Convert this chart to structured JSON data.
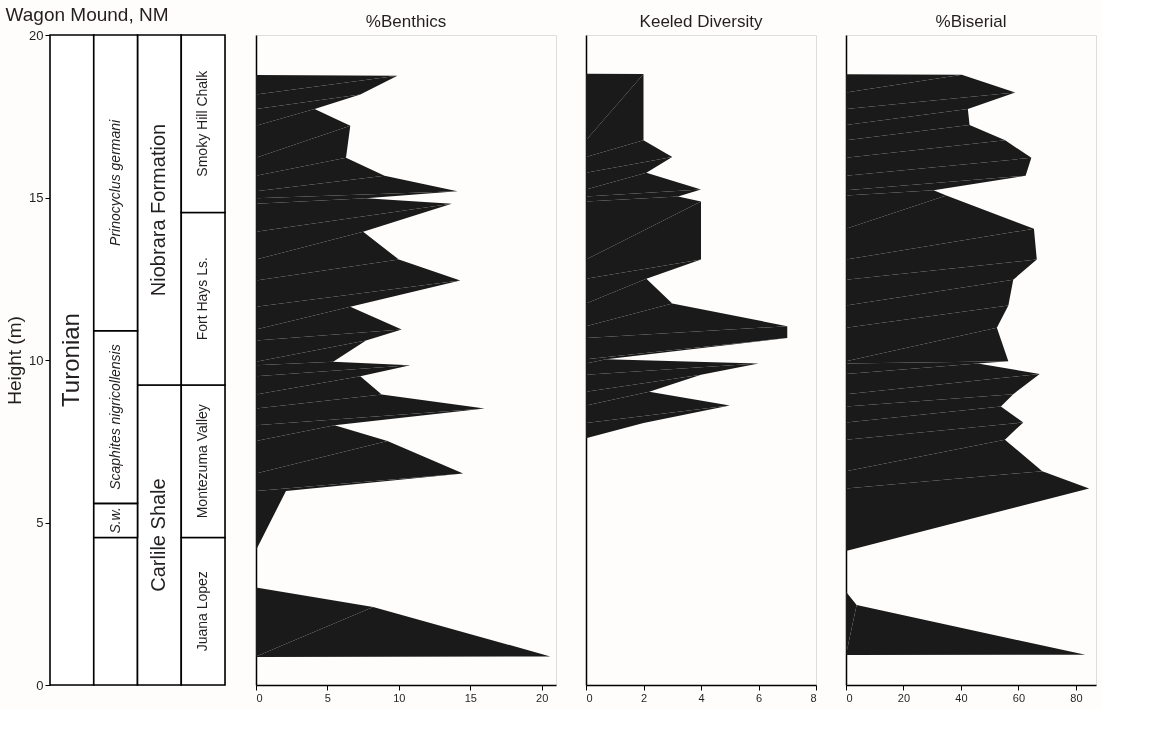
{
  "chart_data": [
    {
      "type": "bar",
      "stacked": true,
      "title": "Wagon Mound, NM",
      "ylabel": "Height (m)",
      "categories": [
        null,
        null,
        null,
        null
      ],
      "series": [
        {
          "color": "#ffffff",
          "values": [
            20,
            4.54,
            9.23,
            4.54
          ],
          "value_labels": [
            "Turonian",
            null,
            "Carlile Shale",
            "Juana Lopez"
          ]
        },
        {
          "color": "#ffffff",
          "values": [
            null,
            1.05,
            10.77,
            4.69
          ],
          "value_labels": [
            null,
            "S.w.",
            "Niobrara Formation",
            "Montezuma Valley"
          ]
        },
        {
          "color": "#ffffff",
          "values": [
            null,
            5.31,
            null,
            5.31
          ],
          "value_labels": [
            null,
            "Scaphites nigricollensis",
            null,
            "Fort Hays Ls."
          ]
        },
        {
          "color": "#ffffff",
          "values": [
            null,
            9.1,
            null,
            5.46
          ],
          "value_labels": [
            null,
            "Prinocyclus germani",
            null,
            "Smoky Hill Chalk"
          ]
        }
      ],
      "ylim": [
        0,
        20
      ],
      "yticks": [
        0,
        5,
        10,
        15,
        20
      ],
      "tick_labels": "y",
      "grid": false
    },
    {
      "type": "area",
      "orientation": "horizontal",
      "title": "%Benthics",
      "color": "#1a1a1a",
      "x": [
        18.77,
        18.75,
        18.17,
        17.72,
        17.21,
        16.22,
        15.67,
        15.19,
        14.98,
        14.81,
        13.95,
        13.09,
        12.45,
        11.64,
        10.94,
        10.6,
        9.95,
        9.84,
        9.5,
        8.94,
        8.51,
        7.99,
        7.51,
        6.51,
        5.97,
        4.15,
        3.0,
        2.4,
        0.88,
        0.86
      ],
      "values": [
        0,
        9.9,
        7.3,
        4.1,
        6.6,
        6.3,
        9.0,
        14.1,
        7.7,
        13.7,
        7.5,
        10.0,
        14.3,
        6.6,
        10.2,
        7.7,
        5.4,
        10.8,
        7.3,
        8.8,
        16.0,
        5.5,
        9.2,
        14.5,
        2.1,
        0,
        0,
        8.2,
        20.6,
        0
      ],
      "xlim": [
        0,
        21
      ],
      "xticks": [
        0,
        5,
        10,
        15,
        20
      ],
      "ylim": [
        0,
        20
      ],
      "tick_labels": "x",
      "grid": false
    },
    {
      "type": "area",
      "orientation": "horizontal",
      "title": "Keeled Diversity",
      "color": "#1a1a1a",
      "x": [
        18.81,
        18.8,
        16.76,
        16.25,
        15.76,
        15.25,
        15.03,
        14.88,
        13.09,
        12.5,
        11.74,
        11.04,
        10.68,
        10.02,
        9.89,
        9.55,
        9.02,
        8.6,
        8.06,
        7.59
      ],
      "values": [
        0,
        2.0,
        2.0,
        3.0,
        2.1,
        4.0,
        3.2,
        4.0,
        4.0,
        2.1,
        3.0,
        7.0,
        7.0,
        0.7,
        6.0,
        4.0,
        2.2,
        5.0,
        2.0,
        0
      ],
      "xlim": [
        0,
        8
      ],
      "xticks": [
        0,
        2,
        4,
        6,
        8
      ],
      "ylim": [
        0,
        20
      ],
      "tick_labels": "x",
      "grid": false
    },
    {
      "type": "area",
      "orientation": "horizontal",
      "title": "%Biserial",
      "color": "#1a1a1a",
      "x": [
        18.79,
        18.78,
        18.23,
        17.72,
        17.23,
        16.76,
        16.22,
        15.67,
        15.22,
        15.06,
        14.04,
        13.09,
        12.47,
        11.68,
        10.99,
        9.96,
        9.89,
        9.57,
        8.95,
        8.57,
        8.08,
        7.55,
        6.58,
        6.05,
        4.12,
        2.87,
        2.46,
        0.93,
        0.92
      ],
      "values": [
        0,
        40.3,
        58.9,
        42.4,
        43.0,
        55.4,
        64.5,
        62.5,
        30.5,
        34.9,
        65.4,
        66.4,
        58.2,
        56.5,
        52.5,
        56.5,
        45.9,
        67.4,
        58.2,
        53.9,
        61.7,
        55.3,
        68.3,
        84.6,
        0,
        0,
        3.7,
        83.3,
        0
      ],
      "xlim": [
        0,
        87
      ],
      "xticks": [
        0,
        20,
        40,
        60,
        80
      ],
      "ylim": [
        0,
        20
      ],
      "tick_labels": "x",
      "grid": false
    }
  ]
}
